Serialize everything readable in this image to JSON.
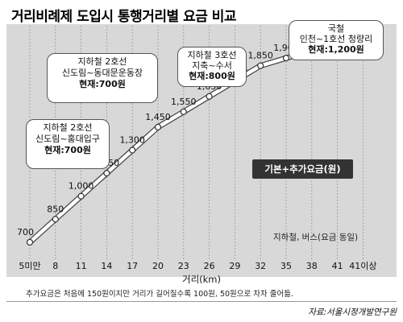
{
  "title": "거리비례제 도입시 통행거리별 요금 비교",
  "legend": "기본+추가요금(원)",
  "applies_to": "지하철, 버스(요금 동일)",
  "footnote": "추가요금은 처음에 150원이지만 거리가 길어질수록 100원, 50원으로 차차 줄어듦.",
  "source": "자료:서울시정개발연구원",
  "callouts": [
    {
      "line1": "지하철 2호선",
      "line2": "신도림~홍대입구",
      "fare": "현재:700원"
    },
    {
      "line1": "지하철 2호선",
      "line2": "신도림~동대문운동장",
      "fare": "현재:700원"
    },
    {
      "line1": "지하철 3호선",
      "line2": "지축~수서",
      "fare": "현재:800원"
    },
    {
      "line1": "국철",
      "line2": "인천~1호선 청량리",
      "fare": "현재:1,200원"
    }
  ],
  "colors": {
    "panel": "#d8d8d8",
    "line": "#ffffff",
    "line_edge": "#444444",
    "marker": "#ffffff"
  },
  "chart_data": {
    "type": "line",
    "title": "거리비례제 도입시 통행거리별 요금 비교",
    "xlabel": "거리(km)",
    "ylabel": "",
    "categories": [
      "5미만",
      "8",
      "11",
      "14",
      "17",
      "20",
      "23",
      "26",
      "29",
      "32",
      "35",
      "38",
      "41",
      "41이상"
    ],
    "series": [
      {
        "name": "기본+추가요금(원)",
        "values": [
          700,
          850,
          1000,
          1150,
          1300,
          1450,
          1550,
          1650,
          1750,
          1850,
          1900,
          1950,
          2000,
          2000
        ]
      }
    ],
    "value_labels": [
      "700",
      "850",
      "1,000",
      "1,150",
      "1,300",
      "1,450",
      "1,550",
      "1,650",
      "1,750",
      "1,850",
      "1,900",
      "1,950",
      "2,000",
      "2,000"
    ],
    "ylim": [
      600,
      2100
    ],
    "grid": true
  }
}
